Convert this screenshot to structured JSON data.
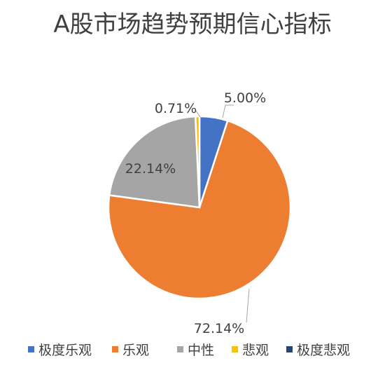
{
  "chart_data": {
    "type": "pie",
    "title": "A股市场趋势预期信心指标",
    "categories": [
      "极度乐观",
      "乐观",
      "中性",
      "悲观",
      "极度悲观"
    ],
    "values": [
      5.0,
      72.14,
      22.14,
      0.71,
      0.0
    ],
    "data_labels": [
      "5.00%",
      "72.14%",
      "22.14%",
      "0.71%",
      ""
    ],
    "colors": [
      "#4472C4",
      "#ED7D31",
      "#A5A5A5",
      "#FFC000",
      "#264478"
    ],
    "legend_position": "bottom",
    "start_angle": "12 o'clock, clockwise"
  }
}
